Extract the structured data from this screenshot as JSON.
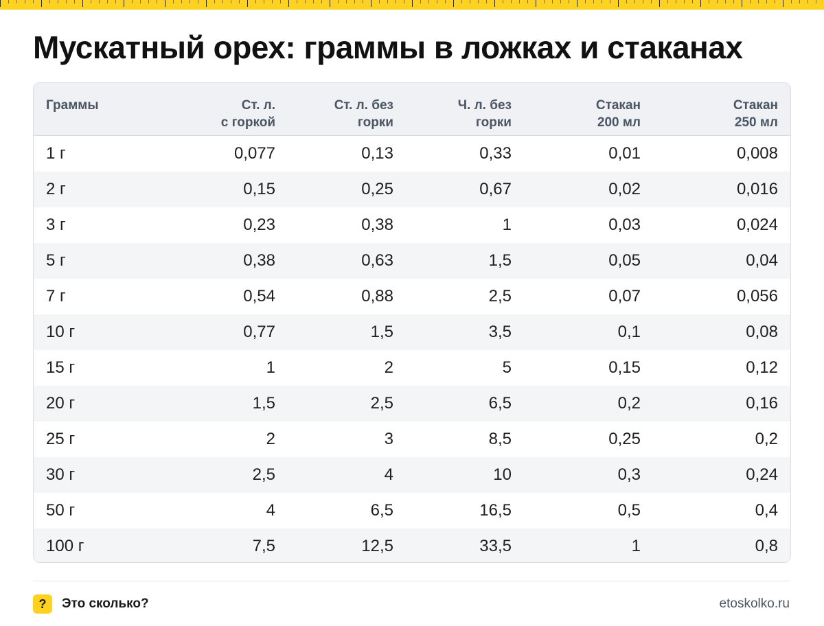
{
  "title": "Мускатный орех: граммы в ложках и стаканах",
  "table": {
    "headers": [
      "Граммы",
      "Ст. л.\nс горкой",
      "Ст. л. без\nгорки",
      "Ч. л. без\nгорки",
      "Стакан\n200 мл",
      "Стакан\n250 мл"
    ],
    "rows": [
      [
        "1 г",
        "0,077",
        "0,13",
        "0,33",
        "0,01",
        "0,008"
      ],
      [
        "2 г",
        "0,15",
        "0,25",
        "0,67",
        "0,02",
        "0,016"
      ],
      [
        "3 г",
        "0,23",
        "0,38",
        "1",
        "0,03",
        "0,024"
      ],
      [
        "5 г",
        "0,38",
        "0,63",
        "1,5",
        "0,05",
        "0,04"
      ],
      [
        "7 г",
        "0,54",
        "0,88",
        "2,5",
        "0,07",
        "0,056"
      ],
      [
        "10 г",
        "0,77",
        "1,5",
        "3,5",
        "0,1",
        "0,08"
      ],
      [
        "15 г",
        "1",
        "2",
        "5",
        "0,15",
        "0,12"
      ],
      [
        "20 г",
        "1,5",
        "2,5",
        "6,5",
        "0,2",
        "0,16"
      ],
      [
        "25 г",
        "2",
        "3",
        "8,5",
        "0,25",
        "0,2"
      ],
      [
        "30 г",
        "2,5",
        "4",
        "10",
        "0,3",
        "0,24"
      ],
      [
        "50 г",
        "4",
        "6,5",
        "16,5",
        "0,5",
        "0,4"
      ],
      [
        "100 г",
        "7,5",
        "12,5",
        "33,5",
        "1",
        "0,8"
      ]
    ]
  },
  "footer": {
    "icon": "question-mark-icon",
    "icon_glyph": "?",
    "brand": "Это сколько?",
    "site": "etoskolko.ru"
  },
  "colors": {
    "accent": "#ffd21f",
    "header_bg": "#eff1f4",
    "stripe_bg": "#f3f5f7"
  }
}
